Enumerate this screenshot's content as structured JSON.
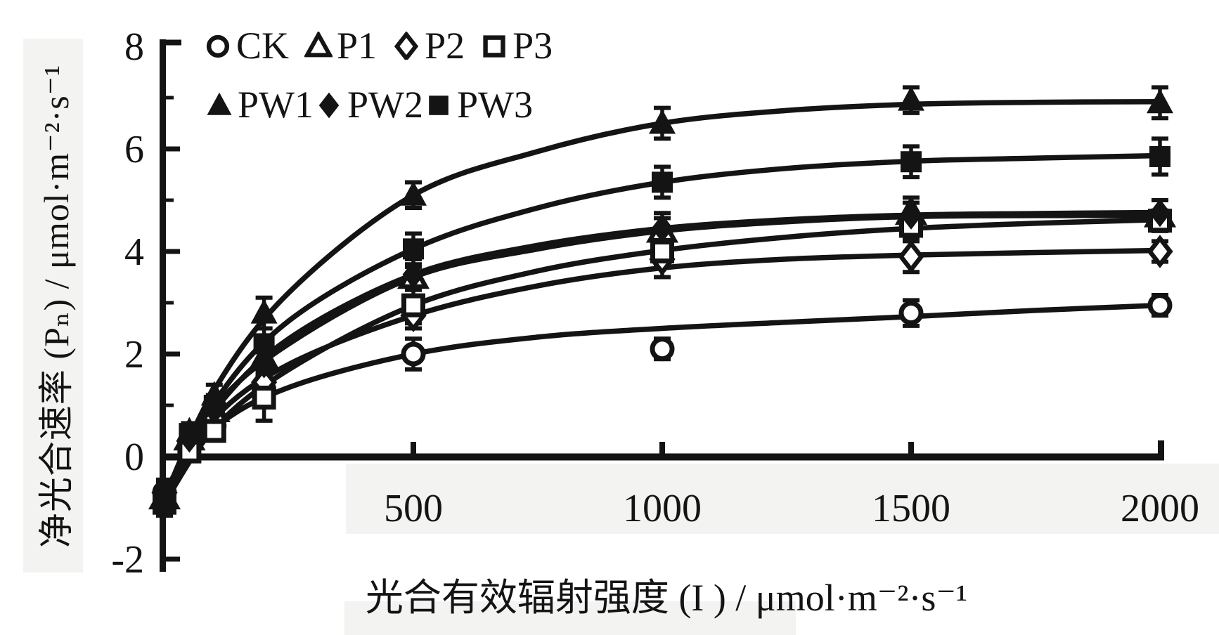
{
  "figure": {
    "y_axis_title": "净光合速率 (Pₙ) / μmol·m⁻²·s⁻¹",
    "x_axis_title": "光合有效辐射强度 (I ) / μmol·m⁻²·s⁻¹"
  },
  "chart_data": {
    "type": "line",
    "xlabel": "光合有效辐射强度 (I) / μmol·m⁻²·s⁻¹",
    "ylabel": "净光合速率 (Pn) / μmol·m⁻²·s⁻¹",
    "xlim": [
      0,
      2000
    ],
    "ylim": [
      -2,
      8
    ],
    "grid": false,
    "legend_position": "top-left-inside",
    "x_ticks": [
      {
        "value": 500,
        "label": "500"
      },
      {
        "value": 1000,
        "label": "1000"
      },
      {
        "value": 1500,
        "label": "1500"
      },
      {
        "value": 2000,
        "label": "2000"
      }
    ],
    "y_ticks": [
      {
        "value": 8,
        "label": "8"
      },
      {
        "value": 6,
        "label": "6"
      },
      {
        "value": 4,
        "label": "4"
      },
      {
        "value": 2,
        "label": "2"
      },
      {
        "value": 0,
        "label": "0"
      },
      {
        "value": -2,
        "label": "-2"
      }
    ],
    "y_minor_ticks": [
      7,
      5,
      3,
      1,
      -1
    ],
    "x": [
      0,
      50,
      100,
      200,
      500,
      1000,
      1500,
      2000
    ],
    "fit_x": [
      0,
      100,
      250,
      500,
      750,
      1000,
      1250,
      1500,
      1750,
      2000
    ],
    "series": [
      {
        "name": "CK",
        "marker": "circle-open",
        "values": [
          -0.7,
          0.2,
          0.6,
          1.3,
          2.0,
          2.1,
          2.8,
          2.95
        ],
        "errors": [
          0.25,
          0.15,
          0.15,
          0.2,
          0.3,
          0.2,
          0.25,
          0.2
        ],
        "fit_y": [
          -0.7,
          0.55,
          1.35,
          2.0,
          2.33,
          2.5,
          2.62,
          2.73,
          2.85,
          2.95
        ]
      },
      {
        "name": "P1",
        "marker": "triangle-open",
        "values": [
          -0.8,
          0.35,
          0.9,
          1.9,
          3.5,
          4.4,
          4.75,
          4.7
        ],
        "errors": [
          0.2,
          0.15,
          0.15,
          0.35,
          0.2,
          0.25,
          0.2,
          0.3
        ],
        "fit_y": [
          -0.8,
          0.95,
          2.2,
          3.5,
          4.05,
          4.4,
          4.58,
          4.68,
          4.7,
          4.7
        ]
      },
      {
        "name": "P2",
        "marker": "diamond-open",
        "values": [
          -0.7,
          0.3,
          0.75,
          1.45,
          2.75,
          3.85,
          3.9,
          4.0
        ],
        "errors": [
          0.2,
          0.1,
          0.15,
          0.2,
          0.25,
          0.35,
          0.3,
          0.2
        ],
        "fit_y": [
          -0.7,
          0.75,
          1.8,
          2.75,
          3.33,
          3.68,
          3.85,
          3.93,
          3.98,
          4.02
        ]
      },
      {
        "name": "P3",
        "marker": "square-open",
        "values": [
          -0.9,
          0.1,
          0.5,
          1.15,
          2.95,
          4.0,
          4.5,
          4.6
        ],
        "errors": [
          0.25,
          0.1,
          0.15,
          0.45,
          0.35,
          0.3,
          0.25,
          0.2
        ],
        "fit_y": [
          -0.9,
          0.55,
          1.7,
          2.95,
          3.62,
          4.02,
          4.28,
          4.45,
          4.55,
          4.62
        ]
      },
      {
        "name": "PW1",
        "marker": "triangle-filled",
        "values": [
          -0.8,
          0.5,
          1.2,
          2.8,
          5.1,
          6.5,
          6.95,
          6.9
        ],
        "errors": [
          0.2,
          0.15,
          0.2,
          0.3,
          0.25,
          0.3,
          0.25,
          0.3
        ],
        "fit_y": [
          -0.8,
          1.3,
          3.2,
          5.1,
          5.95,
          6.5,
          6.75,
          6.87,
          6.91,
          6.92
        ]
      },
      {
        "name": "PW2",
        "marker": "diamond-filled",
        "values": [
          -0.7,
          0.35,
          0.9,
          1.8,
          3.55,
          4.45,
          4.7,
          4.75
        ],
        "errors": [
          0.2,
          0.1,
          0.15,
          0.25,
          0.3,
          0.3,
          0.35,
          0.25
        ],
        "fit_y": [
          -0.7,
          0.9,
          2.3,
          3.55,
          4.12,
          4.45,
          4.62,
          4.71,
          4.74,
          4.76
        ]
      },
      {
        "name": "PW3",
        "marker": "square-filled",
        "values": [
          -0.9,
          0.45,
          1.0,
          2.2,
          4.05,
          5.35,
          5.75,
          5.85
        ],
        "errors": [
          0.25,
          0.15,
          0.2,
          0.3,
          0.3,
          0.3,
          0.3,
          0.35
        ],
        "fit_y": [
          -0.9,
          1.05,
          2.65,
          4.05,
          4.85,
          5.35,
          5.62,
          5.76,
          5.82,
          5.87
        ]
      }
    ],
    "colors": {
      "ink": "#141414",
      "paper": "#ffffff",
      "scan_shade": "#f3f3f1"
    }
  }
}
